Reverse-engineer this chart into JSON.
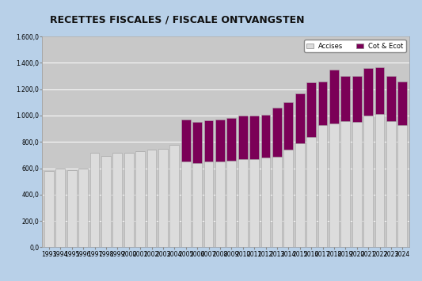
{
  "title": "RECETTES FISCALES / FISCALE ONTVANGSTEN",
  "years": [
    1993,
    1994,
    1995,
    1996,
    1997,
    1998,
    1999,
    2000,
    2001,
    2002,
    2003,
    2004,
    2005,
    2006,
    2007,
    2008,
    2009,
    2010,
    2011,
    2012,
    2013,
    2014,
    2015,
    2016,
    2017,
    2018,
    2019,
    2020,
    2021,
    2022,
    2023,
    2024
  ],
  "accises": [
    580,
    600,
    585,
    600,
    720,
    695,
    715,
    720,
    730,
    740,
    750,
    780,
    650,
    640,
    650,
    650,
    660,
    670,
    670,
    680,
    690,
    740,
    790,
    840,
    930,
    940,
    960,
    950,
    1000,
    1010,
    960,
    930
  ],
  "cot_ecot": [
    0,
    0,
    0,
    0,
    0,
    0,
    0,
    0,
    0,
    0,
    0,
    0,
    320,
    310,
    315,
    320,
    320,
    330,
    330,
    325,
    370,
    365,
    380,
    415,
    330,
    410,
    340,
    350,
    360,
    355,
    340,
    330
  ],
  "accises_color": "#dcdcdc",
  "cot_ecot_color": "#7b0057",
  "bar_edge_color": "#aaaaaa",
  "background_outer": "#b8d0e8",
  "background_plot": "#c8c8c8",
  "ylim": [
    0,
    1600
  ],
  "yticks": [
    0,
    200,
    400,
    600,
    800,
    1000,
    1200,
    1400,
    1600
  ],
  "ytick_labels": [
    "0,0",
    "200,0",
    "400,0",
    "600,0",
    "800,0",
    "1.000,0",
    "1.200,0",
    "1.400,0",
    "1.600,0"
  ],
  "legend_accises": "Accises",
  "legend_cot": "Cot & Ecot",
  "title_fontsize": 9,
  "tick_fontsize": 5.5
}
